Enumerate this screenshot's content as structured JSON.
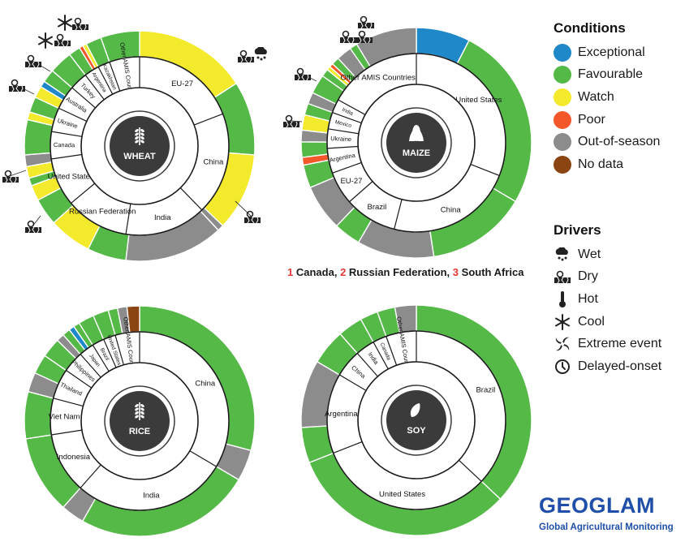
{
  "colors": {
    "Exceptional": "#1e88c8",
    "Favourable": "#55b947",
    "Watch": "#f2ea2a",
    "Poor": "#f4582a",
    "Out-of-season": "#8c8c8c",
    "No data": "#8b4513"
  },
  "legend": {
    "conditions_title": "Conditions",
    "conditions": [
      {
        "label": "Exceptional",
        "key": "Exceptional"
      },
      {
        "label": "Favourable",
        "key": "Favourable"
      },
      {
        "label": "Watch",
        "key": "Watch"
      },
      {
        "label": "Poor",
        "key": "Poor"
      },
      {
        "label": "Out-of-season",
        "key": "Out-of-season"
      },
      {
        "label": "No data",
        "key": "No data"
      }
    ],
    "drivers_title": "Drivers",
    "drivers": [
      {
        "label": "Wet",
        "icon": "wet-icon"
      },
      {
        "label": "Dry",
        "icon": "dry-icon"
      },
      {
        "label": "Hot",
        "icon": "hot-icon"
      },
      {
        "label": "Cool",
        "icon": "cool-icon"
      },
      {
        "label": "Extreme event",
        "icon": "extreme-event-icon"
      },
      {
        "label": "Delayed-onset",
        "icon": "delayed-onset-icon"
      }
    ]
  },
  "footnote": [
    {
      "num": "1",
      "text": "Canada,"
    },
    {
      "num": "2",
      "text": "Russian Federation,"
    },
    {
      "num": "3",
      "text": "South Africa"
    }
  ],
  "logo": {
    "word": "GEOGLAM",
    "subtitle": "Global Agricultural Monitoring"
  },
  "chart_data": [
    {
      "type": "pie",
      "crop": "WHEAT",
      "countries": [
        {
          "name": "EU-27",
          "share": 17.5
        },
        {
          "name": "China",
          "share": 17.0
        },
        {
          "name": "India",
          "share": 13.5
        },
        {
          "name": "Russian Federation",
          "share": 10.5
        },
        {
          "name": "United States",
          "share": 8.0
        },
        {
          "name": "Canada",
          "share": 4.5
        },
        {
          "name": "Ukraine",
          "share": 4.0
        },
        {
          "name": "Australia",
          "share": 4.0
        },
        {
          "name": "Turkey",
          "share": 3.0
        },
        {
          "name": "Argentina",
          "share": 2.5
        },
        {
          "name": "Kazakhstan",
          "share": 2.0
        },
        {
          "name": "Other AMIS Countries",
          "share": 5.0
        }
      ],
      "conditions": [
        {
          "c": "Watch",
          "v": 14.5
        },
        {
          "c": "Favourable",
          "v": 9.5
        },
        {
          "c": "Watch",
          "v": 10.0
        },
        {
          "c": "Out-of-season",
          "v": 0.8
        },
        {
          "c": "Out-of-season",
          "v": 12.7
        },
        {
          "c": "Favourable",
          "v": 5.0
        },
        {
          "c": "Watch",
          "v": 5.5
        },
        {
          "c": "Favourable",
          "v": 3.5
        },
        {
          "c": "Watch",
          "v": 2.0
        },
        {
          "c": "Favourable",
          "v": 1.0
        },
        {
          "c": "Watch",
          "v": 1.5
        },
        {
          "c": "Out-of-season",
          "v": 1.5
        },
        {
          "c": "Favourable",
          "v": 4.5
        },
        {
          "c": "Watch",
          "v": 1.0
        },
        {
          "c": "Favourable",
          "v": 2.0
        },
        {
          "c": "Watch",
          "v": 1.5
        },
        {
          "c": "Exceptional",
          "v": 0.8
        },
        {
          "c": "Favourable",
          "v": 1.7
        },
        {
          "c": "Favourable",
          "v": 3.0
        },
        {
          "c": "Favourable",
          "v": 1.5
        },
        {
          "c": "Poor",
          "v": 0.5
        },
        {
          "c": "Watch",
          "v": 0.5
        },
        {
          "c": "Favourable",
          "v": 2.0
        },
        {
          "c": "Favourable",
          "v": 5.0
        }
      ]
    },
    {
      "type": "pie",
      "crop": "MAIZE",
      "countries": [
        {
          "name": "United States",
          "share": 31.0
        },
        {
          "name": "China",
          "share": 23.0
        },
        {
          "name": "Brazil",
          "share": 9.5
        },
        {
          "name": "EU-27",
          "share": 6.0
        },
        {
          "name": "Argentina",
          "share": 4.5
        },
        {
          "name": "Ukraine",
          "share": 3.5
        },
        {
          "name": "Mexico",
          "share": 3.0
        },
        {
          "name": "India",
          "share": 2.5
        },
        {
          "name": "Other AMIS Countries",
          "share": 17.0
        }
      ],
      "conditions": [
        {
          "c": "Exceptional",
          "v": 7.0
        },
        {
          "c": "Favourable",
          "v": 24.0
        },
        {
          "c": "Favourable",
          "v": 13.0
        },
        {
          "c": "Out-of-season",
          "v": 10.0
        },
        {
          "c": "Favourable",
          "v": 3.5
        },
        {
          "c": "Out-of-season",
          "v": 6.0
        },
        {
          "c": "Favourable",
          "v": 3.0
        },
        {
          "c": "Poor",
          "v": 1.0
        },
        {
          "c": "Favourable",
          "v": 2.0
        },
        {
          "c": "Out-of-season",
          "v": 1.5
        },
        {
          "c": "Watch",
          "v": 2.0
        },
        {
          "c": "Favourable",
          "v": 1.5
        },
        {
          "c": "Out-of-season",
          "v": 1.5
        },
        {
          "c": "Favourable",
          "v": 2.5
        },
        {
          "c": "Favourable",
          "v": 1.0
        },
        {
          "c": "Watch",
          "v": 0.5
        },
        {
          "c": "Poor",
          "v": 0.5
        },
        {
          "c": "Favourable",
          "v": 1.0
        },
        {
          "c": "Out-of-season",
          "v": 2.0
        },
        {
          "c": "Favourable",
          "v": 1.0
        },
        {
          "c": "Out-of-season",
          "v": 8.0
        }
      ]
    },
    {
      "type": "pie",
      "crop": "RICE",
      "countries": [
        {
          "name": "China",
          "share": 30.5
        },
        {
          "name": "India",
          "share": 25.5
        },
        {
          "name": "Indonesia",
          "share": 10.0
        },
        {
          "name": "Viet Nam",
          "share": 6.0
        },
        {
          "name": "Thailand",
          "share": 5.0
        },
        {
          "name": "Philippines",
          "share": 3.5
        },
        {
          "name": "Japan",
          "share": 2.5
        },
        {
          "name": "Brazil",
          "share": 2.0
        },
        {
          "name": "United States",
          "share": 2.0
        },
        {
          "name": "Other AMIS Countries",
          "share": 4.0
        }
      ],
      "conditions": [
        {
          "c": "Favourable",
          "v": 26.5
        },
        {
          "c": "Out-of-season",
          "v": 4.0
        },
        {
          "c": "Favourable",
          "v": 22.5
        },
        {
          "c": "Out-of-season",
          "v": 3.0
        },
        {
          "c": "Favourable",
          "v": 10.0
        },
        {
          "c": "Favourable",
          "v": 6.0
        },
        {
          "c": "Out-of-season",
          "v": 2.5
        },
        {
          "c": "Favourable",
          "v": 2.5
        },
        {
          "c": "Favourable",
          "v": 2.5
        },
        {
          "c": "Out-of-season",
          "v": 1.0
        },
        {
          "c": "Favourable",
          "v": 1.0
        },
        {
          "c": "Exceptional",
          "v": 0.7
        },
        {
          "c": "Favourable",
          "v": 0.8
        },
        {
          "c": "Favourable",
          "v": 2.0
        },
        {
          "c": "Favourable",
          "v": 2.0
        },
        {
          "c": "Favourable",
          "v": 1.2
        },
        {
          "c": "Out-of-season",
          "v": 1.2
        },
        {
          "c": "No data",
          "v": 1.6
        }
      ]
    },
    {
      "type": "pie",
      "crop": "SOY",
      "countries": [
        {
          "name": "Brazil",
          "share": 37.0
        },
        {
          "name": "United States",
          "share": 32.0
        },
        {
          "name": "Argentina",
          "share": 14.5
        },
        {
          "name": "China",
          "share": 5.0
        },
        {
          "name": "India",
          "share": 3.5
        },
        {
          "name": "Canada",
          "share": 2.5
        },
        {
          "name": "Other AMIS Countries",
          "share": 5.5
        }
      ],
      "conditions": [
        {
          "c": "Favourable",
          "v": 37.0
        },
        {
          "c": "Favourable",
          "v": 32.0
        },
        {
          "c": "Favourable",
          "v": 5.0
        },
        {
          "c": "Out-of-season",
          "v": 9.5
        },
        {
          "c": "Favourable",
          "v": 5.0
        },
        {
          "c": "Favourable",
          "v": 3.5
        },
        {
          "c": "Favourable",
          "v": 2.5
        },
        {
          "c": "Favourable",
          "v": 2.5
        },
        {
          "c": "Out-of-season",
          "v": 3.0
        }
      ]
    }
  ]
}
